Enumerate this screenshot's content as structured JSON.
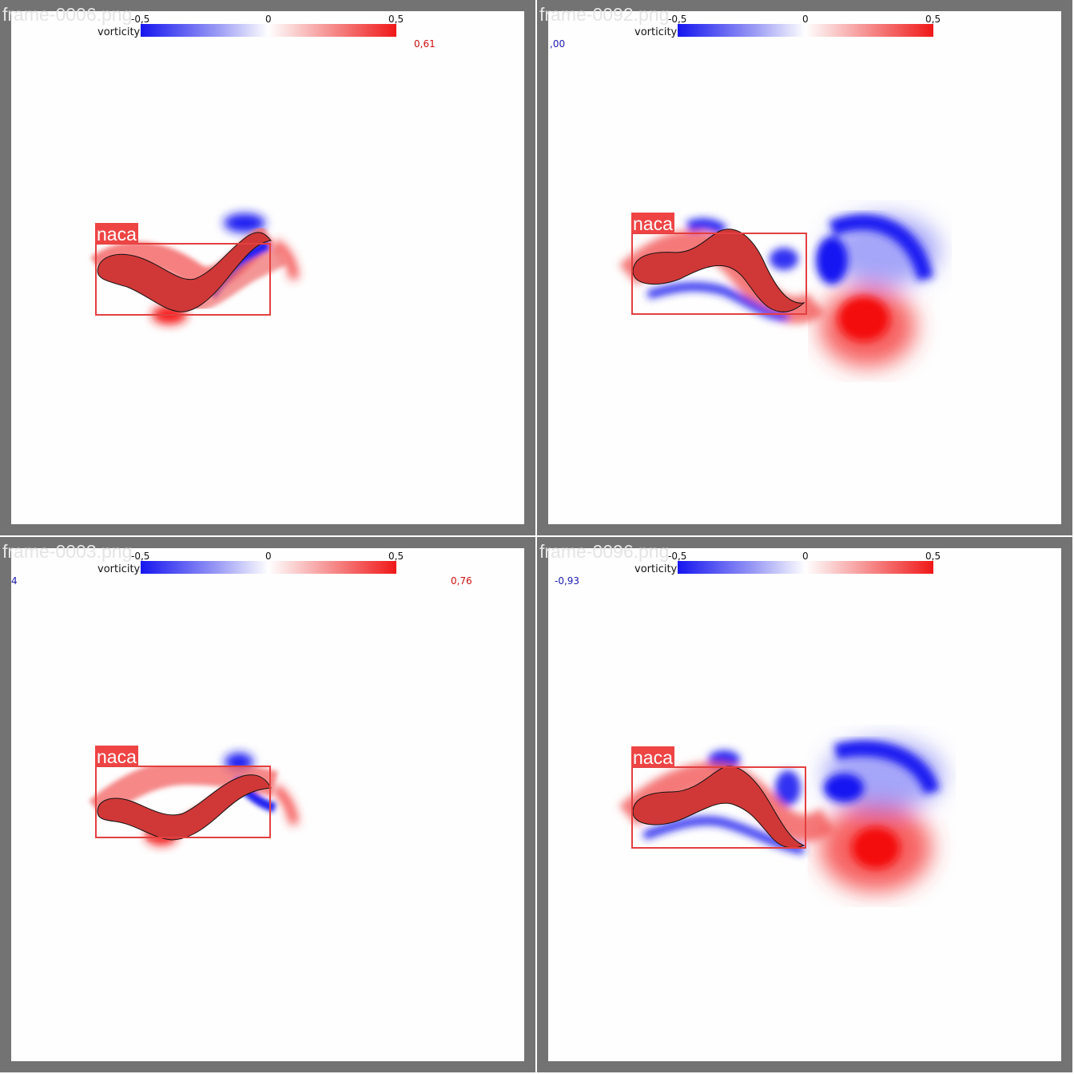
{
  "colorbar": {
    "label": "vorticity",
    "ticks": [
      "-0,5",
      "0",
      "0,5"
    ],
    "low_color": "#1616f0",
    "mid_color": "#ffffff",
    "high_color": "#f01818"
  },
  "frame_color": "#737373",
  "detection_color": "#e34040",
  "panels": [
    {
      "frame": "frame-0006.png",
      "readout_min": "",
      "readout_max": "0,61",
      "detection": "naca"
    },
    {
      "frame": "frame-0092.png",
      "readout_min": ",00",
      "readout_max": "",
      "detection": "naca"
    },
    {
      "frame": "frame-0003.png",
      "readout_min": "4",
      "readout_max": "0,76",
      "detection": "naca"
    },
    {
      "frame": "frame-0096.png",
      "readout_min": "-0,93",
      "readout_max": "",
      "detection": "naca"
    }
  ]
}
